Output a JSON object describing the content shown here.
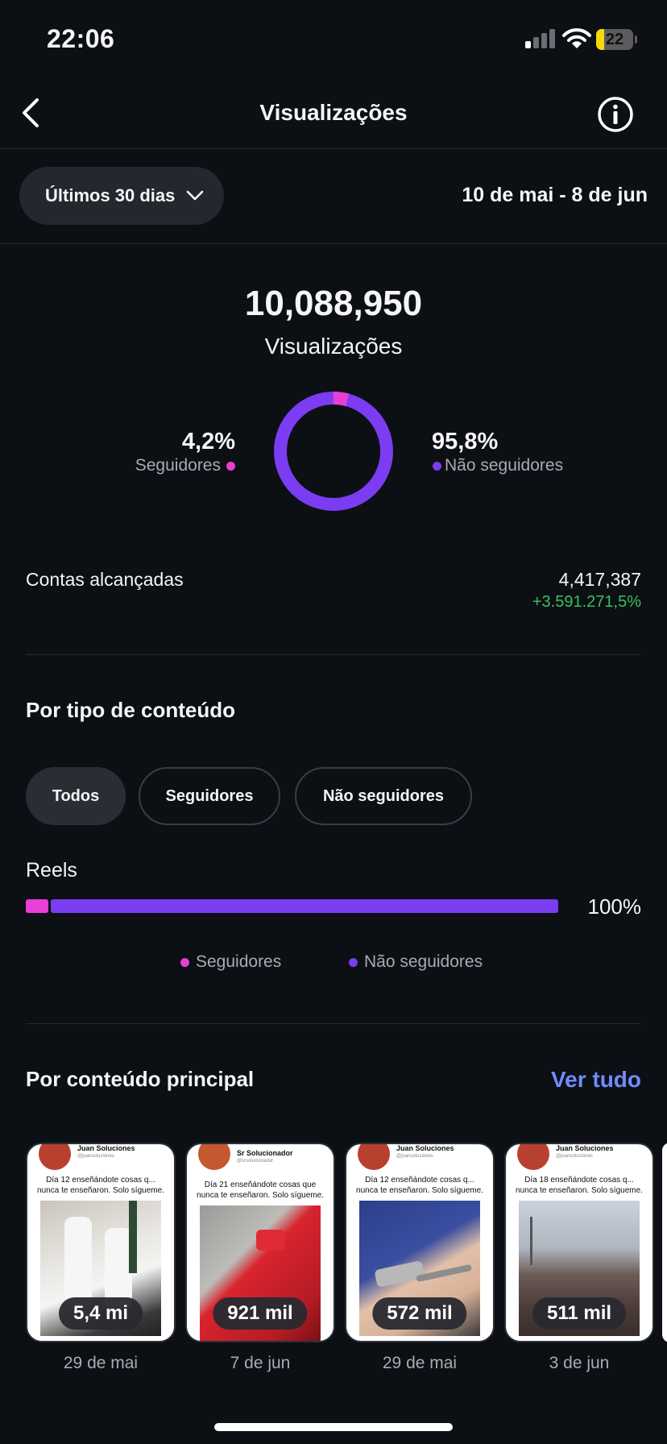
{
  "status_bar": {
    "time": "22:06",
    "battery": "22",
    "battery_level": 0.22
  },
  "header": {
    "title": "Visualizações"
  },
  "range": {
    "label": "Últimos 30 dias",
    "dates": "10 de mai - 8 de jun"
  },
  "summary": {
    "total": "10,088,950",
    "total_label": "Visualizações",
    "followers_pct": "4,2%",
    "followers_label": "Seguidores",
    "followers_fraction": 0.042,
    "non_followers_pct": "95,8%",
    "non_followers_label": "Não seguidores"
  },
  "reach": {
    "label": "Contas alcançadas",
    "value": "4,417,387",
    "change": "+3.591.271,5%"
  },
  "content_type": {
    "title": "Por tipo de conteúdo",
    "filters": [
      "Todos",
      "Seguidores",
      "Não seguidores"
    ],
    "active_filter": "Todos",
    "rows": [
      {
        "label": "Reels",
        "pct": "100%",
        "followers_fraction": 0.042
      }
    ],
    "legend": [
      "Seguidores",
      "Não seguidores"
    ]
  },
  "top_content": {
    "title": "Por conteúdo principal",
    "see_all": "Ver tudo",
    "items": [
      {
        "author": "Juan Soluciones",
        "handle": "@juansoluciones",
        "caption": "Día 12 enseñándote cosas q... nunca te enseñaron. Solo sígueme.",
        "views": "5,4 mi",
        "date": "29 de mai"
      },
      {
        "author": "Sr Solucionador",
        "handle": "@srsolucionador",
        "caption": "Día 21 enseñándote cosas que nunca te enseñaron. Solo sígueme.",
        "views": "921 mil",
        "date": "7 de jun"
      },
      {
        "author": "Juan Soluciones",
        "handle": "@juansoluciones",
        "caption": "Día 12 enseñándote cosas q... nunca te enseñaron. Solo sígueme.",
        "views": "572 mil",
        "date": "29 de mai"
      },
      {
        "author": "Juan Soluciones",
        "handle": "@juansoluciones",
        "caption": "Día 18 enseñándote cosas q... nunca te enseñaron. Solo sígueme.",
        "views": "511 mil",
        "date": "3 de jun"
      }
    ]
  },
  "colors": {
    "followers": "#e83fd6",
    "non_followers": "#7b3cf2",
    "accent_link": "#6f8cff",
    "positive": "#36c25d"
  },
  "icons": {
    "back": "chevron-left-icon",
    "info": "info-icon",
    "range": "chevron-down-icon"
  }
}
